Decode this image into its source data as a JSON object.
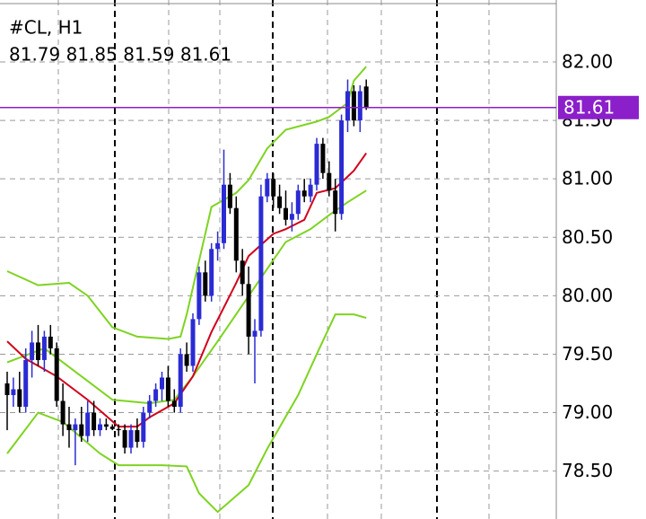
{
  "chart_data": {
    "type": "candlestick",
    "title": "#CL, H1",
    "subtitle": "81.79 81.85 81.59 81.61",
    "categories": [
      null,
      null,
      null,
      null,
      null,
      null,
      null,
      null,
      null,
      null,
      null,
      null,
      null,
      null,
      null,
      null,
      null,
      null,
      null,
      null,
      null,
      null,
      null,
      null,
      null,
      null,
      null,
      null,
      null,
      null,
      null,
      null,
      null,
      null,
      null,
      null,
      null,
      null,
      null,
      null,
      null,
      null,
      null,
      null,
      null,
      null,
      null,
      null,
      null,
      null,
      null,
      null,
      null,
      null,
      null,
      null,
      null,
      null,
      null
    ],
    "open": [
      79.25,
      79.15,
      79.2,
      79.05,
      79.45,
      79.6,
      79.45,
      79.65,
      79.55,
      79.1,
      78.9,
      78.85,
      78.9,
      78.8,
      79.0,
      78.85,
      78.9,
      78.88,
      78.86,
      78.85,
      78.7,
      78.85,
      78.75,
      79.0,
      79.1,
      79.2,
      79.3,
      79.1,
      79.05,
      79.5,
      79.4,
      79.8,
      80.2,
      80.0,
      80.4,
      80.45,
      80.95,
      80.75,
      80.3,
      80.1,
      79.65,
      79.7,
      80.85,
      81.0,
      80.85,
      80.75,
      80.65,
      80.7,
      80.9,
      80.85,
      80.95,
      81.3,
      81.05,
      80.9,
      80.7,
      81.5,
      81.75,
      81.5,
      81.79
    ],
    "high": [
      79.35,
      79.3,
      79.35,
      79.55,
      79.7,
      79.75,
      79.7,
      79.75,
      79.6,
      79.25,
      79.05,
      78.95,
      79.05,
      79.1,
      79.1,
      78.95,
      78.95,
      78.9,
      78.9,
      78.9,
      78.9,
      78.95,
      79.05,
      79.15,
      79.25,
      79.35,
      79.4,
      79.2,
      79.55,
      79.6,
      79.85,
      80.25,
      80.3,
      80.45,
      80.55,
      81.25,
      81.05,
      80.85,
      80.4,
      80.25,
      79.8,
      80.95,
      81.05,
      81.05,
      80.95,
      80.9,
      80.8,
      80.95,
      81.0,
      81.0,
      81.35,
      81.35,
      81.15,
      81.0,
      81.55,
      81.85,
      81.8,
      81.8,
      81.85
    ],
    "low": [
      78.85,
      79.05,
      79.0,
      79.0,
      79.3,
      79.4,
      79.35,
      79.5,
      79.05,
      78.8,
      78.7,
      78.55,
      78.75,
      78.75,
      78.8,
      78.8,
      78.85,
      78.85,
      78.8,
      78.65,
      78.65,
      78.7,
      78.7,
      78.95,
      79.05,
      79.1,
      79.05,
      79.0,
      79.0,
      79.35,
      79.35,
      79.75,
      79.95,
      79.95,
      80.3,
      80.4,
      80.7,
      80.2,
      80.0,
      79.5,
      79.25,
      79.65,
      80.8,
      80.75,
      80.7,
      80.6,
      80.55,
      80.65,
      80.8,
      80.8,
      80.9,
      81.0,
      80.85,
      80.55,
      80.65,
      81.4,
      81.45,
      81.4,
      81.59
    ],
    "close": [
      79.15,
      79.2,
      79.05,
      79.45,
      79.6,
      79.45,
      79.65,
      79.55,
      79.1,
      78.9,
      78.85,
      78.9,
      78.8,
      79.0,
      78.85,
      78.9,
      78.88,
      78.86,
      78.85,
      78.7,
      78.85,
      78.75,
      79.0,
      79.1,
      79.2,
      79.3,
      79.1,
      79.05,
      79.5,
      79.4,
      79.8,
      80.2,
      80.0,
      80.4,
      80.45,
      80.95,
      80.75,
      80.3,
      80.1,
      79.65,
      79.7,
      80.85,
      81.0,
      80.85,
      80.75,
      80.65,
      80.7,
      80.9,
      80.85,
      80.95,
      81.3,
      81.05,
      80.9,
      80.7,
      81.5,
      81.75,
      81.5,
      81.75,
      81.61
    ],
    "up_color": "#2b2bd4",
    "down_color": "#000000",
    "lines": [
      {
        "color": "#7ed321",
        "x": [
          0,
          5,
          10,
          13,
          17,
          21,
          26,
          28,
          29,
          31,
          33,
          37,
          39,
          42,
          45,
          50,
          52,
          55,
          56,
          58
        ],
        "values": [
          80.21,
          80.09,
          80.11,
          80.0,
          79.73,
          79.65,
          79.63,
          79.65,
          79.84,
          80.3,
          80.76,
          80.88,
          80.99,
          81.26,
          81.42,
          81.49,
          81.53,
          81.65,
          81.84,
          81.96
        ]
      },
      {
        "color": "#7ed321",
        "x": [
          0,
          6,
          17,
          23,
          27,
          30,
          34,
          38,
          42,
          45,
          49,
          52,
          55,
          58
        ],
        "values": [
          79.43,
          79.55,
          79.11,
          79.08,
          79.11,
          79.31,
          79.61,
          79.92,
          80.23,
          80.46,
          80.57,
          80.69,
          80.8,
          80.9
        ]
      },
      {
        "color": "#d0021b",
        "x": [
          0,
          3,
          8,
          13,
          18,
          21,
          23,
          27,
          30,
          33,
          37,
          39,
          43,
          45,
          48,
          50,
          53,
          56,
          58
        ],
        "values": [
          79.61,
          79.46,
          79.31,
          79.11,
          78.88,
          78.88,
          78.96,
          79.08,
          79.31,
          79.69,
          80.11,
          80.34,
          80.53,
          80.57,
          80.65,
          80.88,
          80.92,
          81.07,
          81.22
        ]
      },
      {
        "color": "#7ed321",
        "x": [
          0,
          5,
          9,
          15,
          18,
          25,
          29,
          31,
          34,
          39,
          42,
          47,
          50,
          53,
          56,
          58
        ],
        "values": [
          78.65,
          79.0,
          78.92,
          78.65,
          78.55,
          78.55,
          78.54,
          78.31,
          78.15,
          78.38,
          78.69,
          79.15,
          79.5,
          79.84,
          79.84,
          79.81
        ]
      }
    ],
    "last_price": 81.61,
    "last_price_color": "#8b1fc9",
    "ylim": [
      78.09,
      82.53
    ],
    "yticks": [
      {
        "value": 78.5,
        "label": "78.50"
      },
      {
        "value": 79,
        "label": "79.00"
      },
      {
        "value": 79.5,
        "label": "79.50"
      },
      {
        "value": 80,
        "label": "80.00"
      },
      {
        "value": 80.5,
        "label": "80.50"
      },
      {
        "value": 81,
        "label": "81.00"
      },
      {
        "value": 81.5,
        "label": "81.50"
      },
      {
        "value": 82,
        "label": "82.00"
      }
    ],
    "grid": true
  }
}
